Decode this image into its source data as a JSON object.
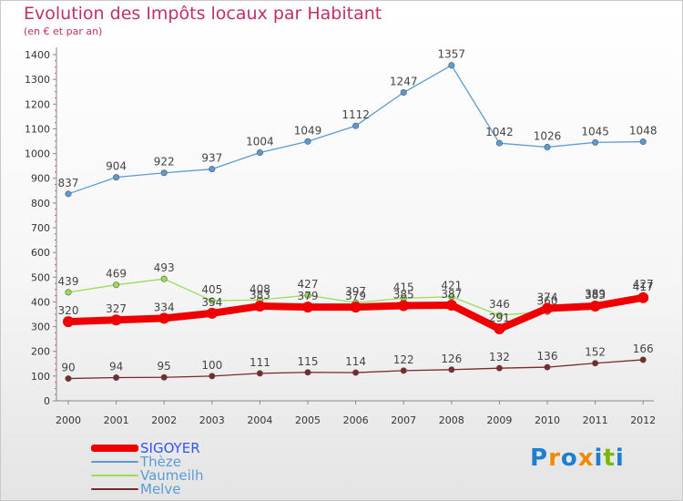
{
  "title": "Evolution des Impôts locaux par Habitant",
  "subtitle": "(en € et par an)",
  "brand": {
    "chars": [
      "P",
      "r",
      "o",
      "x",
      "i",
      "t",
      "i"
    ],
    "colors": [
      "#1e7fd0",
      "#f08a00",
      "#1e7fd0",
      "#f08a00",
      "#1e7fd0",
      "#7ab800",
      "#1e7fd0"
    ]
  },
  "chart_data": {
    "type": "line",
    "title": "Evolution des Impôts locaux par Habitant",
    "subtitle": "(en € et par an)",
    "x": [
      "2000",
      "2001",
      "2002",
      "2003",
      "2004",
      "2005",
      "2006",
      "2007",
      "2008",
      "2009",
      "2010",
      "2011",
      "2012"
    ],
    "ylim": [
      0,
      1400
    ],
    "yticks": [
      0,
      100,
      200,
      300,
      400,
      500,
      600,
      700,
      800,
      900,
      1000,
      1100,
      1200,
      1300,
      1400
    ],
    "ytick_labels": [
      "0",
      "100",
      "200",
      "300",
      "400",
      "500",
      "600",
      "700",
      "800",
      "900",
      "1000",
      "1100",
      "1200",
      "1300",
      "1400"
    ],
    "grid": false,
    "legend_position": "bottom-left",
    "series": [
      {
        "name": "Thèze",
        "color": "#5b9bd5",
        "values": [
          837,
          904,
          922,
          937,
          1004,
          1049,
          1112,
          1247,
          1357,
          1042,
          1026,
          1045,
          1048
        ],
        "labels": [
          "837",
          "904",
          "922",
          "937",
          "1004",
          "1049",
          "1112",
          "1247",
          "1357",
          "1042",
          "1026",
          "1045",
          "1048"
        ]
      },
      {
        "name": "Vaumeilh",
        "color": "#99dd55",
        "values": [
          439,
          469,
          493,
          405,
          408,
          427,
          397,
          415,
          421,
          346,
          360,
          389,
          427
        ],
        "labels": [
          "439",
          "469",
          "493",
          "405",
          "408",
          "427",
          "397",
          "415",
          "421",
          "346",
          "360",
          "389",
          "427"
        ]
      },
      {
        "name": "Melve",
        "color": "#7a2a2a",
        "values": [
          90,
          94,
          95,
          100,
          111,
          115,
          114,
          122,
          126,
          132,
          136,
          152,
          166
        ],
        "labels": [
          "90",
          "94",
          "95",
          "100",
          "111",
          "115",
          "114",
          "122",
          "126",
          "132",
          "136",
          "152",
          "166"
        ]
      },
      {
        "name": "SIGOYER",
        "color": "#ee0000",
        "values": [
          320,
          327,
          334,
          354,
          383,
          379,
          379,
          385,
          387,
          291,
          374,
          383,
          417
        ],
        "labels": [
          "320",
          "327",
          "334",
          "354",
          "383",
          "379",
          "379",
          "385",
          "387",
          "291",
          "374",
          "383",
          "417"
        ]
      }
    ],
    "legend": [
      {
        "name": "SIGOYER",
        "color": "#ee0000",
        "text_color": "#3355ee"
      },
      {
        "name": "Thèze",
        "color": "#5b9bd5",
        "text_color": "#5b9bd5"
      },
      {
        "name": "Vaumeilh",
        "color": "#99dd55",
        "text_color": "#5b9bd5"
      },
      {
        "name": "Melve",
        "color": "#7a2a2a",
        "text_color": "#5b9bd5"
      }
    ]
  }
}
